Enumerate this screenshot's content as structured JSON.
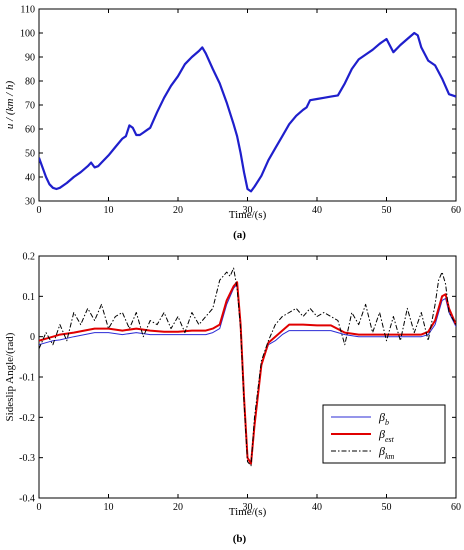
{
  "chart_data": [
    {
      "type": "line",
      "caption": "(a)",
      "xlabel": "Time/(s)",
      "ylabel": "u / (km / h)",
      "xlim": [
        0,
        60
      ],
      "ylim": [
        30,
        110
      ],
      "xticks": [
        0,
        10,
        20,
        30,
        40,
        50,
        60
      ],
      "yticks": [
        30,
        40,
        50,
        60,
        70,
        80,
        90,
        100,
        110
      ],
      "legend": "none",
      "grid": false,
      "series": [
        {
          "color": "#1f1fcc",
          "x": [
            0,
            0.5,
            1,
            1.5,
            2,
            2.5,
            3,
            4,
            5,
            6,
            7,
            7.5,
            8,
            8.5,
            9,
            10,
            11,
            12,
            12.5,
            13,
            13.5,
            14,
            14.5,
            15,
            15.5,
            16,
            17,
            18,
            19,
            20,
            21,
            22,
            23,
            23.5,
            24,
            25,
            26,
            27,
            28,
            28.5,
            29,
            29.5,
            30,
            30.5,
            31,
            32,
            33,
            34,
            35,
            36,
            37,
            38,
            38.5,
            39,
            40,
            41,
            42,
            43,
            44,
            45,
            46,
            47,
            48,
            49,
            50,
            51,
            52,
            53,
            54,
            54.5,
            55,
            56,
            57,
            58,
            59,
            60
          ],
          "y": [
            48,
            44,
            40,
            37,
            35.5,
            35,
            35.5,
            37.5,
            40,
            42,
            44.5,
            46,
            44,
            44.5,
            46,
            49,
            52.5,
            56,
            57,
            61.5,
            60.5,
            57.5,
            57.5,
            58.5,
            59.5,
            60.5,
            67,
            73,
            78,
            82,
            87,
            90,
            92.5,
            94,
            91.5,
            85,
            79,
            71,
            62,
            57,
            50,
            42,
            35,
            34,
            36,
            40.5,
            47,
            52,
            57,
            62,
            65.5,
            68,
            69,
            72,
            72.5,
            73,
            73.5,
            74,
            79,
            85,
            89,
            91,
            93,
            95.5,
            97.5,
            92,
            95,
            97.5,
            100,
            99,
            94,
            88.5,
            86.5,
            81,
            74.5,
            73.5
          ]
        }
      ]
    },
    {
      "type": "line",
      "caption": "(b)",
      "xlabel": "Time/(s)",
      "ylabel": "Sideslip Angle/(rad)",
      "xlim": [
        0,
        60
      ],
      "ylim": [
        -0.4,
        0.2
      ],
      "xticks": [
        0,
        10,
        20,
        30,
        40,
        50,
        60
      ],
      "yticks": [
        -0.4,
        -0.3,
        -0.2,
        -0.1,
        0,
        0.1,
        0.2
      ],
      "grid": false,
      "legend": "bottom-right",
      "legend_entries": [
        {
          "symbol": "β",
          "sub": "b",
          "color": "#2b2bd6",
          "style": "solid-thin"
        },
        {
          "symbol": "β",
          "sub": "est",
          "color": "#e00000",
          "style": "solid-thick"
        },
        {
          "symbol": "β",
          "sub": "km",
          "color": "#000000",
          "style": "dash-dot"
        }
      ],
      "series": [
        {
          "legend_index": 0,
          "color": "#2b2bd6",
          "x": [
            0,
            1,
            2,
            3,
            5,
            8,
            10,
            12,
            14,
            16,
            18,
            20,
            22,
            24,
            25,
            26,
            27,
            28,
            28.5,
            29,
            29.5,
            30,
            30.5,
            31,
            32,
            33,
            34,
            35,
            36,
            38,
            40,
            42,
            44,
            46,
            48,
            50,
            52,
            54,
            55,
            56,
            57,
            57.5,
            58,
            58.5,
            59,
            60
          ],
          "y": [
            -0.02,
            -0.015,
            -0.01,
            -0.008,
            0,
            0.01,
            0.01,
            0.005,
            0.01,
            0.005,
            0.005,
            0.005,
            0.005,
            0.005,
            0.01,
            0.02,
            0.08,
            0.12,
            0.13,
            0.02,
            -0.15,
            -0.3,
            -0.31,
            -0.22,
            -0.07,
            -0.02,
            -0.01,
            0.005,
            0.015,
            0.015,
            0.015,
            0.015,
            0.005,
            0,
            0,
            0,
            0,
            0,
            0,
            0.005,
            0.03,
            0.06,
            0.09,
            0.095,
            0.06,
            0.025
          ]
        },
        {
          "legend_index": 1,
          "color": "#e00000",
          "x": [
            0,
            1,
            2,
            3,
            5,
            8,
            10,
            12,
            14,
            16,
            18,
            20,
            22,
            24,
            25,
            26,
            27,
            28,
            28.5,
            29,
            29.5,
            30,
            30.5,
            31,
            32,
            33,
            34,
            35,
            36,
            38,
            40,
            42,
            44,
            46,
            48,
            50,
            52,
            54,
            55,
            56,
            57,
            57.5,
            58,
            58.5,
            59,
            60
          ],
          "y": [
            -0.01,
            -0.005,
            0,
            0.005,
            0.01,
            0.02,
            0.02,
            0.015,
            0.02,
            0.015,
            0.012,
            0.012,
            0.015,
            0.015,
            0.02,
            0.03,
            0.09,
            0.125,
            0.135,
            0.03,
            -0.15,
            -0.3,
            -0.315,
            -0.22,
            -0.07,
            -0.015,
            0,
            0.015,
            0.03,
            0.03,
            0.028,
            0.028,
            0.01,
            0.005,
            0.005,
            0.005,
            0.005,
            0.005,
            0.005,
            0.012,
            0.04,
            0.07,
            0.1,
            0.105,
            0.07,
            0.03
          ]
        },
        {
          "legend_index": 2,
          "color": "#000000",
          "x": [
            0,
            1,
            2,
            3,
            4,
            5,
            6,
            7,
            8,
            9,
            10,
            11,
            12,
            13,
            14,
            15,
            16,
            17,
            18,
            19,
            20,
            21,
            22,
            23,
            24,
            25,
            26,
            27,
            27.5,
            28,
            28.5,
            29,
            29.5,
            30,
            30.5,
            31,
            32,
            33,
            34,
            35,
            36,
            37,
            38,
            39,
            40,
            41,
            42,
            43,
            44,
            45,
            46,
            47,
            48,
            49,
            50,
            51,
            52,
            53,
            54,
            55,
            56,
            57,
            57.5,
            58,
            58.5,
            59,
            60
          ],
          "y": [
            -0.03,
            0.01,
            -0.02,
            0.03,
            -0.01,
            0.06,
            0.03,
            0.07,
            0.04,
            0.08,
            0.02,
            0.05,
            0.06,
            0.02,
            0.06,
            0,
            0.04,
            0.03,
            0.06,
            0.02,
            0.05,
            0.01,
            0.06,
            0.03,
            0.05,
            0.07,
            0.14,
            0.16,
            0.15,
            0.17,
            0.12,
            0.02,
            -0.16,
            -0.31,
            -0.32,
            -0.2,
            -0.06,
            -0.01,
            0.03,
            0.05,
            0.06,
            0.07,
            0.05,
            0.07,
            0.05,
            0.06,
            0.05,
            0.04,
            -0.02,
            0.06,
            0.03,
            0.08,
            0.01,
            0.06,
            -0.01,
            0.05,
            -0.01,
            0.07,
            0.01,
            0.06,
            -0.01,
            0.08,
            0.14,
            0.16,
            0.13,
            0.06,
            0.03
          ]
        }
      ]
    }
  ]
}
